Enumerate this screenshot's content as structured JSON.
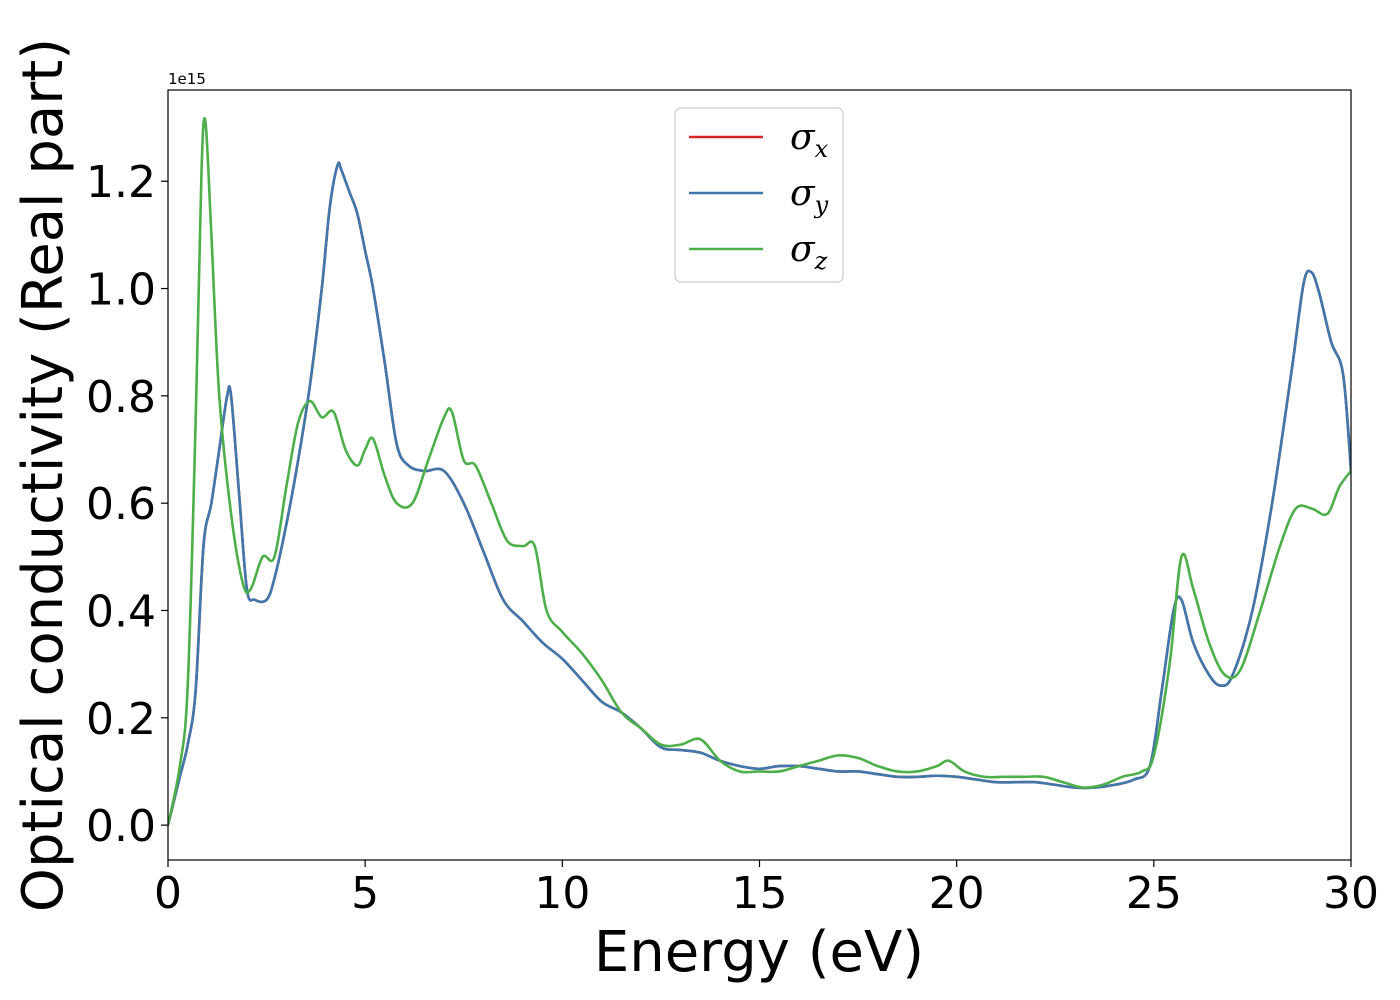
{
  "chart_data": {
    "type": "line",
    "xlabel": "Energy (eV)",
    "ylabel": "Optical conductivity (Real part)",
    "y_offset_label": "1e15",
    "xlim": [
      0,
      30
    ],
    "ylim": [
      -0.065,
      1.37
    ],
    "x_ticks": [
      0,
      5,
      10,
      15,
      20,
      25,
      30
    ],
    "x_tick_labels": [
      "0",
      "5",
      "10",
      "15",
      "20",
      "25",
      "30"
    ],
    "y_ticks": [
      0.0,
      0.2,
      0.4,
      0.6,
      0.8,
      1.0,
      1.2
    ],
    "y_tick_labels": [
      "0.0",
      "0.2",
      "0.4",
      "0.6",
      "0.8",
      "1.0",
      "1.2"
    ],
    "grid": false,
    "legend_position": "upper-center",
    "series": [
      {
        "name": "σx",
        "symbol": "σ",
        "subscript": "x",
        "color": "#d62728",
        "x": [
          0,
          0.3,
          0.5,
          0.7,
          0.9,
          1.1,
          1.3,
          1.5,
          1.6,
          1.8,
          2.0,
          2.2,
          2.5,
          2.7,
          3.0,
          3.3,
          3.6,
          3.9,
          4.1,
          4.3,
          4.4,
          4.6,
          4.8,
          5.0,
          5.2,
          5.5,
          5.8,
          6.1,
          6.5,
          7.0,
          7.5,
          8.0,
          8.5,
          9.0,
          9.5,
          10.0,
          10.5,
          11.0,
          11.5,
          12.0,
          12.5,
          13.0,
          13.5,
          14.0,
          14.5,
          15.0,
          15.5,
          16.0,
          16.5,
          17.0,
          17.5,
          18.0,
          18.5,
          19.0,
          19.5,
          20.0,
          20.5,
          21.0,
          21.5,
          22.0,
          22.5,
          23.0,
          23.5,
          24.0,
          24.5,
          24.9,
          25.2,
          25.5,
          25.7,
          26.0,
          26.4,
          26.7,
          27.0,
          27.5,
          28.0,
          28.5,
          28.8,
          29.0,
          29.2,
          29.5,
          29.8,
          30.0
        ],
        "values": [
          0,
          0.09,
          0.15,
          0.25,
          0.52,
          0.6,
          0.7,
          0.8,
          0.8,
          0.62,
          0.44,
          0.42,
          0.42,
          0.46,
          0.56,
          0.68,
          0.82,
          1.0,
          1.15,
          1.23,
          1.22,
          1.18,
          1.14,
          1.07,
          1.0,
          0.86,
          0.71,
          0.67,
          0.66,
          0.66,
          0.6,
          0.51,
          0.42,
          0.38,
          0.34,
          0.31,
          0.27,
          0.23,
          0.21,
          0.18,
          0.145,
          0.14,
          0.135,
          0.12,
          0.11,
          0.105,
          0.11,
          0.11,
          0.105,
          0.1,
          0.1,
          0.095,
          0.09,
          0.09,
          0.092,
          0.09,
          0.085,
          0.08,
          0.08,
          0.08,
          0.075,
          0.07,
          0.07,
          0.075,
          0.085,
          0.11,
          0.25,
          0.4,
          0.42,
          0.34,
          0.28,
          0.26,
          0.28,
          0.4,
          0.6,
          0.85,
          1.01,
          1.03,
          0.99,
          0.9,
          0.84,
          0.66
        ]
      },
      {
        "name": "σy",
        "symbol": "σ",
        "subscript": "y",
        "color": "#3f78ad",
        "x": [
          0,
          0.3,
          0.5,
          0.7,
          0.9,
          1.1,
          1.3,
          1.5,
          1.6,
          1.8,
          2.0,
          2.2,
          2.5,
          2.7,
          3.0,
          3.3,
          3.6,
          3.9,
          4.1,
          4.3,
          4.4,
          4.6,
          4.8,
          5.0,
          5.2,
          5.5,
          5.8,
          6.1,
          6.5,
          7.0,
          7.5,
          8.0,
          8.5,
          9.0,
          9.5,
          10.0,
          10.5,
          11.0,
          11.5,
          12.0,
          12.5,
          13.0,
          13.5,
          14.0,
          14.5,
          15.0,
          15.5,
          16.0,
          16.5,
          17.0,
          17.5,
          18.0,
          18.5,
          19.0,
          19.5,
          20.0,
          20.5,
          21.0,
          21.5,
          22.0,
          22.5,
          23.0,
          23.5,
          24.0,
          24.5,
          24.9,
          25.2,
          25.5,
          25.7,
          26.0,
          26.4,
          26.7,
          27.0,
          27.5,
          28.0,
          28.5,
          28.8,
          29.0,
          29.2,
          29.5,
          29.8,
          30.0
        ],
        "values": [
          0,
          0.09,
          0.15,
          0.25,
          0.52,
          0.6,
          0.7,
          0.8,
          0.8,
          0.62,
          0.44,
          0.42,
          0.42,
          0.46,
          0.56,
          0.68,
          0.82,
          1.0,
          1.15,
          1.23,
          1.22,
          1.18,
          1.14,
          1.07,
          1.0,
          0.86,
          0.71,
          0.67,
          0.66,
          0.66,
          0.6,
          0.51,
          0.42,
          0.38,
          0.34,
          0.31,
          0.27,
          0.23,
          0.21,
          0.18,
          0.145,
          0.14,
          0.135,
          0.12,
          0.11,
          0.105,
          0.11,
          0.11,
          0.105,
          0.1,
          0.1,
          0.095,
          0.09,
          0.09,
          0.092,
          0.09,
          0.085,
          0.08,
          0.08,
          0.08,
          0.075,
          0.07,
          0.07,
          0.075,
          0.085,
          0.11,
          0.25,
          0.4,
          0.42,
          0.34,
          0.28,
          0.26,
          0.28,
          0.4,
          0.6,
          0.85,
          1.01,
          1.03,
          0.99,
          0.9,
          0.84,
          0.66
        ]
      },
      {
        "name": "σz",
        "symbol": "σ",
        "subscript": "z",
        "color": "#4daf4a",
        "x": [
          0,
          0.3,
          0.5,
          0.7,
          0.85,
          0.95,
          1.1,
          1.3,
          1.6,
          1.9,
          2.1,
          2.4,
          2.7,
          3.0,
          3.3,
          3.6,
          3.9,
          4.2,
          4.5,
          4.8,
          5.0,
          5.2,
          5.5,
          5.8,
          6.2,
          6.6,
          7.0,
          7.2,
          7.5,
          7.8,
          8.2,
          8.6,
          9.0,
          9.3,
          9.6,
          10.0,
          10.5,
          11.0,
          11.5,
          12.0,
          12.5,
          13.0,
          13.5,
          14.0,
          14.5,
          15.0,
          15.5,
          16.0,
          16.5,
          17.0,
          17.5,
          18.0,
          18.5,
          19.0,
          19.5,
          19.8,
          20.2,
          20.7,
          21.2,
          21.7,
          22.2,
          22.7,
          23.2,
          23.7,
          24.2,
          24.7,
          25.0,
          25.4,
          25.7,
          26.0,
          26.4,
          26.8,
          27.2,
          27.7,
          28.2,
          28.6,
          29.0,
          29.4,
          29.7,
          30.0
        ],
        "values": [
          0,
          0.11,
          0.26,
          0.75,
          1.22,
          1.31,
          1.1,
          0.8,
          0.58,
          0.45,
          0.44,
          0.5,
          0.5,
          0.63,
          0.75,
          0.79,
          0.76,
          0.77,
          0.7,
          0.67,
          0.7,
          0.72,
          0.65,
          0.6,
          0.6,
          0.68,
          0.76,
          0.77,
          0.68,
          0.67,
          0.6,
          0.53,
          0.52,
          0.52,
          0.4,
          0.36,
          0.32,
          0.27,
          0.21,
          0.18,
          0.15,
          0.15,
          0.16,
          0.12,
          0.1,
          0.1,
          0.1,
          0.11,
          0.12,
          0.13,
          0.125,
          0.11,
          0.1,
          0.1,
          0.11,
          0.12,
          0.1,
          0.09,
          0.09,
          0.09,
          0.09,
          0.08,
          0.07,
          0.075,
          0.09,
          0.1,
          0.13,
          0.3,
          0.5,
          0.44,
          0.34,
          0.28,
          0.29,
          0.4,
          0.52,
          0.59,
          0.59,
          0.58,
          0.63,
          0.66
        ]
      }
    ]
  }
}
